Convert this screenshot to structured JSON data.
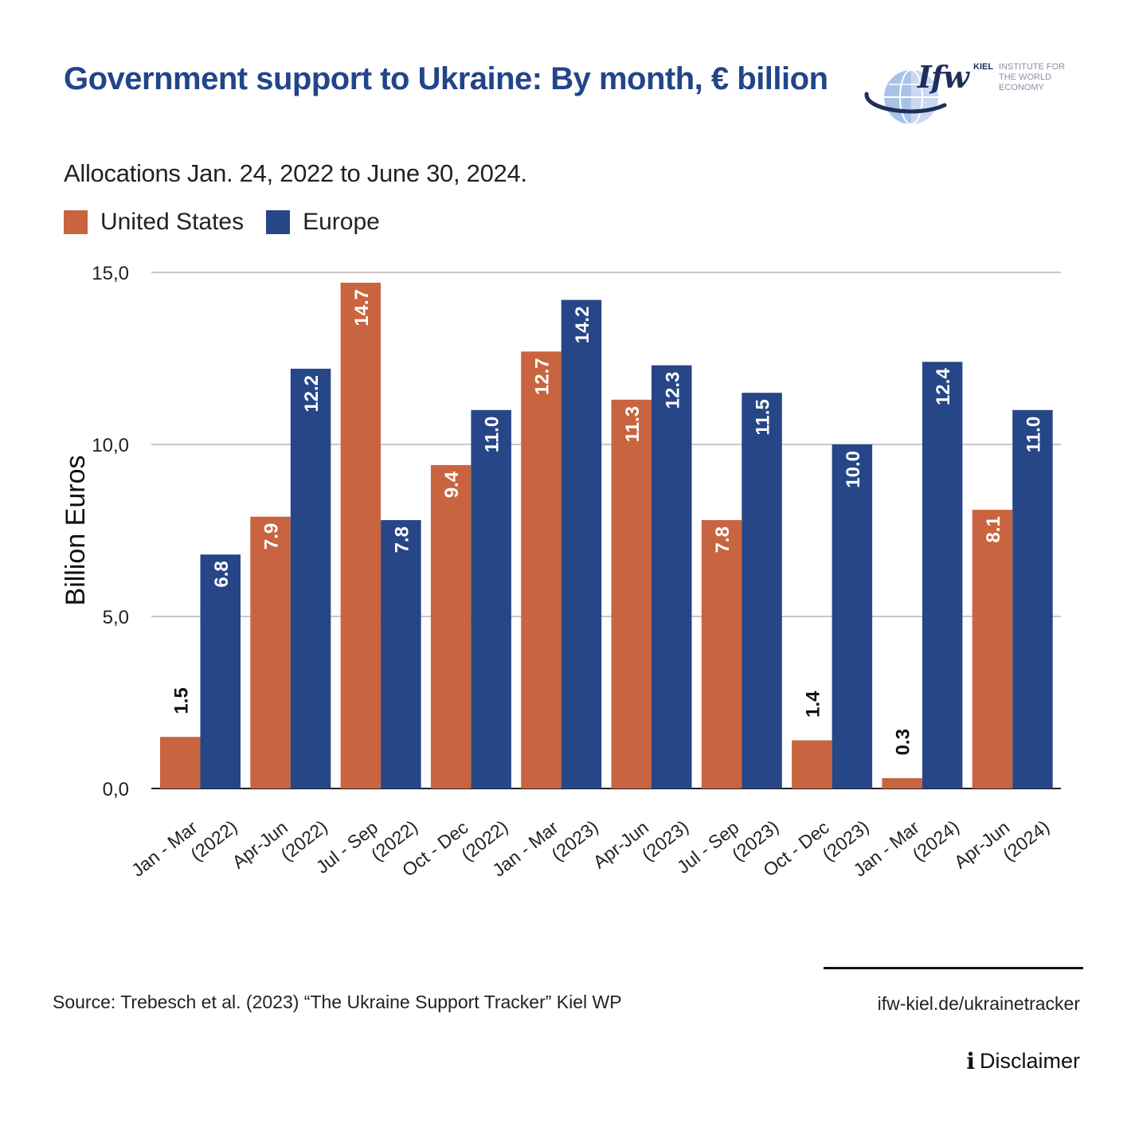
{
  "header": {
    "title": "Government support to Ukraine: By month, € billion",
    "subtitle": "Allocations Jan. 24, 2022 to June 30, 2024."
  },
  "logo": {
    "mark": "Ifw",
    "kiel": "KIEL",
    "institute_line1": "INSTITUTE FOR",
    "institute_line2": "THE WORLD ECONOMY",
    "icon": "globe-icon"
  },
  "footer": {
    "source": "Source: Trebesch et al. (2023) “The Ukraine Support Tracker” Kiel WP",
    "site": "ifw-kiel.de/ukrainetracker",
    "disclaimer": "Disclaimer",
    "disclaimer_icon": "info-icon"
  },
  "chart_data": {
    "type": "bar",
    "ylabel": "Billion Euros",
    "ylim": [
      0,
      15
    ],
    "yticks": [
      "0,0",
      "5,0",
      "10,0",
      "15,0"
    ],
    "grid": true,
    "legend_position": "top-left",
    "categories": [
      [
        "Jan - Mar",
        "(2022)"
      ],
      [
        "Apr-Jun",
        "(2022)"
      ],
      [
        "Jul - Sep",
        "(2022)"
      ],
      [
        "Oct - Dec",
        "(2022)"
      ],
      [
        "Jan - Mar",
        "(2023)"
      ],
      [
        "Apr-Jun",
        "(2023)"
      ],
      [
        "Jul - Sep",
        "(2023)"
      ],
      [
        "Oct - Dec",
        "(2023)"
      ],
      [
        "Jan - Mar",
        "(2024)"
      ],
      [
        "Apr-Jun",
        "(2024)"
      ]
    ],
    "series": [
      {
        "name": "United States",
        "color": "#c86540",
        "values": [
          1.5,
          7.9,
          14.7,
          9.4,
          12.7,
          11.3,
          7.8,
          1.4,
          0.3,
          8.1
        ],
        "labels": [
          "1.5",
          "7.9",
          "14.7",
          "9.4",
          "12.7",
          "11.3",
          "7.8",
          "1.4",
          "0.3",
          "8.1"
        ]
      },
      {
        "name": "Europe",
        "color": "#264687",
        "values": [
          6.8,
          12.2,
          7.8,
          11.0,
          14.2,
          12.3,
          11.5,
          10.0,
          12.4,
          11.0
        ],
        "labels": [
          "6.8",
          "12.2",
          "7.8",
          "11.0",
          "14.2",
          "12.3",
          "11.5",
          "10.0",
          "12.4",
          "11.0"
        ]
      }
    ]
  }
}
